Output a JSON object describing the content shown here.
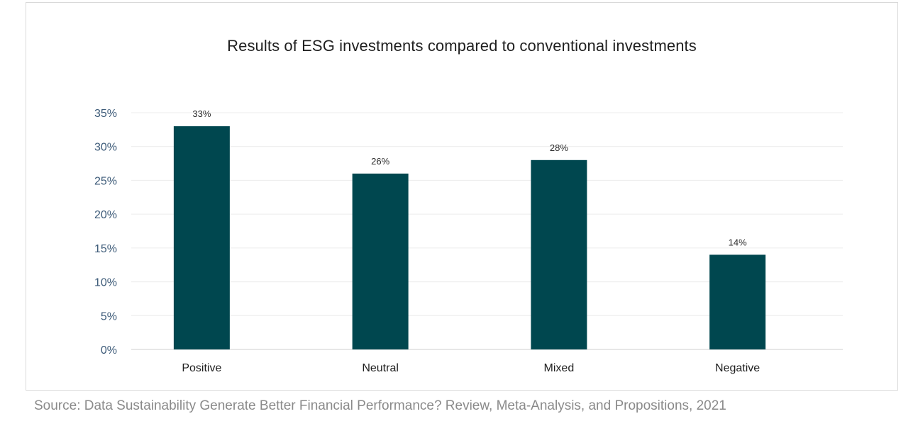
{
  "chart_data": {
    "type": "bar",
    "title": "Results of ESG investments compared to conventional investments",
    "categories": [
      "Positive",
      "Neutral",
      "Mixed",
      "Negative"
    ],
    "values": [
      33,
      26,
      28,
      14
    ],
    "data_labels": [
      "33%",
      "26%",
      "28%",
      "14%"
    ],
    "ylim": [
      0,
      35
    ],
    "yticks": [
      0,
      5,
      10,
      15,
      20,
      25,
      30,
      35
    ],
    "ytick_labels": [
      "0%",
      "5%",
      "10%",
      "15%",
      "20%",
      "25%",
      "30%",
      "35%"
    ],
    "grid": true,
    "legend": "none",
    "bar_color": "#00474f"
  },
  "source_text": "Source: Data Sustainability Generate Better Financial Performance? Review, Meta-Analysis, and Propositions, 2021"
}
